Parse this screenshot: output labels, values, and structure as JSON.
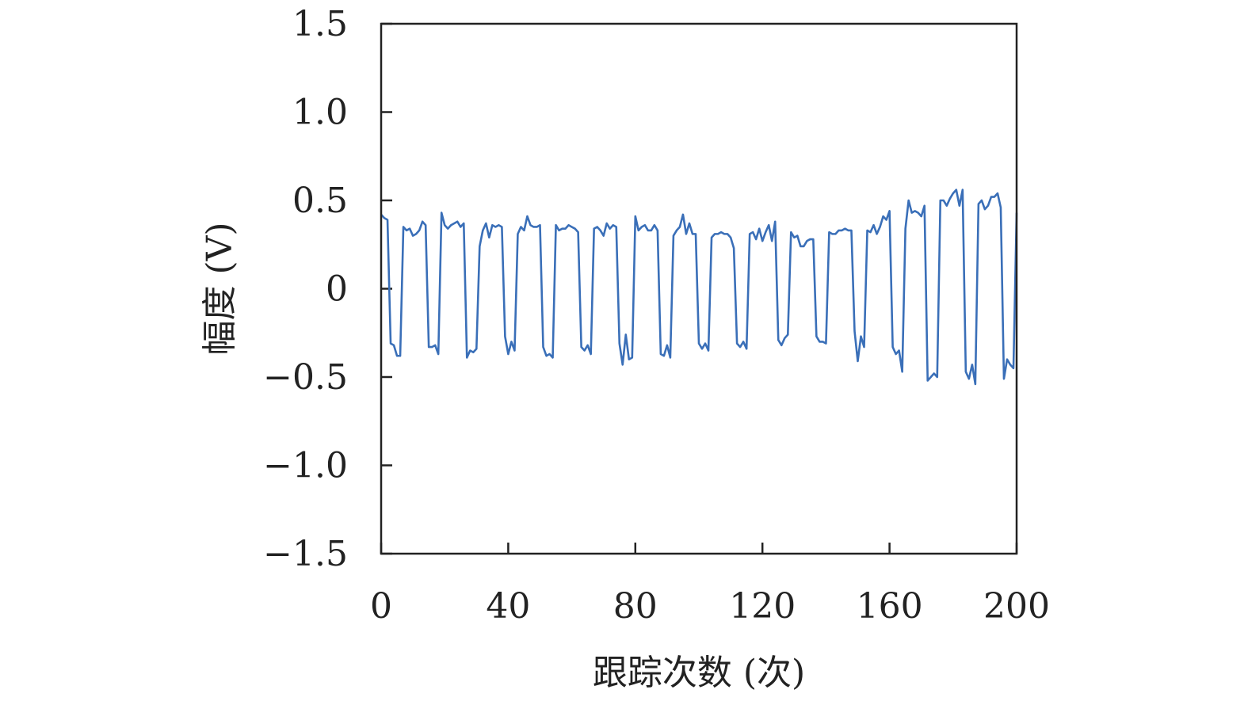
{
  "chart_data": {
    "type": "line",
    "title": "",
    "xlabel": "跟踪次数 (次)",
    "ylabel": "幅度 (V)",
    "xlim": [
      0,
      200
    ],
    "ylim": [
      -1.5,
      1.5
    ],
    "xticks": [
      0,
      40,
      80,
      120,
      160,
      200
    ],
    "xtick_labels": [
      "0",
      "40",
      "80",
      "120",
      "160",
      "200"
    ],
    "yticks": [
      -1.5,
      -1.0,
      -0.5,
      0,
      0.5,
      1.0,
      1.5
    ],
    "ytick_labels": [
      "−1.5",
      "−1.0",
      "−0.5",
      "0",
      "0.5",
      "1.0",
      "1.5"
    ],
    "grid": false,
    "legend": false,
    "line_color": "#3a6fb8",
    "series": [
      {
        "x": [
          0,
          1,
          2,
          3,
          4,
          5,
          6,
          7,
          8,
          9,
          10,
          11,
          12,
          13,
          14,
          15,
          16,
          17,
          18,
          19,
          20,
          21,
          22,
          23,
          24,
          25,
          26,
          27,
          28,
          29,
          30,
          31,
          32,
          33,
          34,
          35,
          36,
          37,
          38,
          39,
          40,
          41,
          42,
          43,
          44,
          45,
          46,
          47,
          48,
          49,
          50,
          51,
          52,
          53,
          54,
          55,
          56,
          57,
          58,
          59,
          60,
          61,
          62,
          63,
          64,
          65,
          66,
          67,
          68,
          69,
          70,
          71,
          72,
          73,
          74,
          75,
          76,
          77,
          78,
          79,
          80,
          81,
          82,
          83,
          84,
          85,
          86,
          87,
          88,
          89,
          90,
          91,
          92,
          93,
          94,
          95,
          96,
          97,
          98,
          99,
          100,
          101,
          102,
          103,
          104,
          105,
          106,
          107,
          108,
          109,
          110,
          111,
          112,
          113,
          114,
          115,
          116,
          117,
          118,
          119,
          120,
          121,
          122,
          123,
          124,
          125,
          126,
          127,
          128,
          129,
          130,
          131,
          132,
          133,
          134,
          135,
          136,
          137,
          138,
          139,
          140,
          141,
          142,
          143,
          144,
          145,
          146,
          147,
          148,
          149,
          150,
          151,
          152,
          153,
          154,
          155,
          156,
          157,
          158,
          159,
          160,
          161,
          162,
          163,
          164,
          165,
          166,
          167,
          168,
          169,
          170,
          171,
          172,
          173,
          174,
          175,
          176,
          177,
          178,
          179,
          180,
          181,
          182,
          183,
          184,
          185,
          186,
          187,
          188,
          189,
          190,
          191,
          192,
          193,
          194,
          195,
          196,
          197,
          198,
          199,
          200
        ],
        "values": [
          0.42,
          0.4,
          0.39,
          -0.31,
          -0.32,
          -0.38,
          -0.38,
          0.35,
          0.33,
          0.34,
          0.3,
          0.31,
          0.33,
          0.38,
          0.36,
          -0.33,
          -0.33,
          -0.32,
          -0.37,
          0.43,
          0.36,
          0.34,
          0.36,
          0.37,
          0.38,
          0.35,
          0.37,
          -0.39,
          -0.35,
          -0.36,
          -0.34,
          0.24,
          0.33,
          0.37,
          0.29,
          0.36,
          0.35,
          0.36,
          0.35,
          -0.27,
          -0.37,
          -0.3,
          -0.35,
          0.31,
          0.35,
          0.33,
          0.41,
          0.36,
          0.35,
          0.35,
          0.36,
          -0.33,
          -0.38,
          -0.37,
          -0.39,
          0.36,
          0.33,
          0.34,
          0.34,
          0.36,
          0.35,
          0.34,
          0.32,
          -0.33,
          -0.35,
          -0.32,
          -0.37,
          0.34,
          0.35,
          0.33,
          0.3,
          0.37,
          0.34,
          0.36,
          0.35,
          -0.31,
          -0.43,
          -0.26,
          -0.4,
          -0.39,
          0.41,
          0.33,
          0.35,
          0.36,
          0.33,
          0.33,
          0.36,
          0.33,
          -0.37,
          -0.38,
          -0.32,
          -0.39,
          0.3,
          0.33,
          0.35,
          0.42,
          0.31,
          0.37,
          0.31,
          0.31,
          -0.31,
          -0.34,
          -0.31,
          -0.35,
          0.29,
          0.31,
          0.31,
          0.32,
          0.31,
          0.31,
          0.29,
          0.23,
          -0.31,
          -0.33,
          -0.3,
          -0.34,
          0.31,
          0.32,
          0.28,
          0.34,
          0.27,
          0.32,
          0.36,
          0.27,
          0.38,
          -0.29,
          -0.32,
          -0.28,
          -0.26,
          0.32,
          0.29,
          0.3,
          0.24,
          0.24,
          0.27,
          0.28,
          0.28,
          -0.27,
          -0.3,
          -0.3,
          -0.31,
          0.32,
          0.31,
          0.31,
          0.33,
          0.33,
          0.34,
          0.33,
          0.33,
          -0.24,
          -0.41,
          -0.27,
          -0.33,
          0.33,
          0.32,
          0.36,
          0.31,
          0.35,
          0.41,
          0.39,
          0.44,
          -0.33,
          -0.37,
          -0.35,
          -0.47,
          0.34,
          0.5,
          0.43,
          0.44,
          0.43,
          0.41,
          0.47,
          -0.52,
          -0.5,
          -0.48,
          -0.5,
          0.5,
          0.5,
          0.47,
          0.51,
          0.54,
          0.56,
          0.47,
          0.56,
          -0.47,
          -0.51,
          -0.43,
          -0.54,
          0.48,
          0.5,
          0.45,
          0.47,
          0.52,
          0.52,
          0.54,
          0.46,
          -0.51,
          -0.4,
          -0.43,
          -0.45,
          0.43
        ]
      }
    ]
  }
}
